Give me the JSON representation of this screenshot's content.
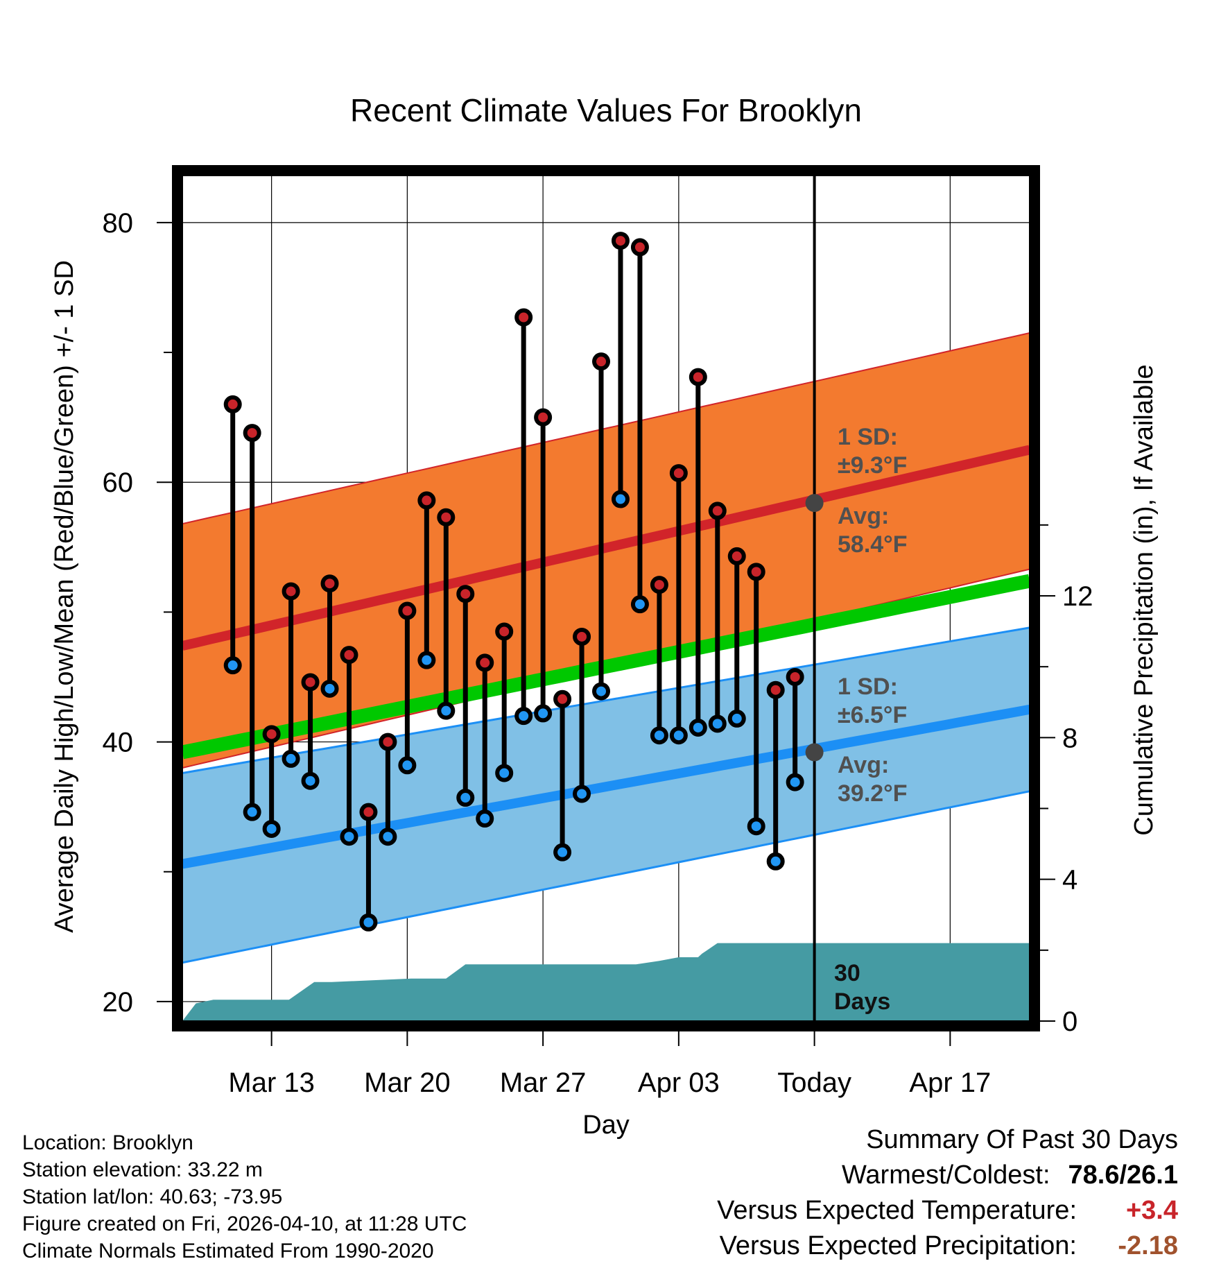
{
  "chart_data": {
    "type": "line",
    "title": "Recent Climate Values For Brooklyn",
    "xlabel": "Day",
    "ylabel": "Average Daily High/Low/Mean (Red/Blue/Green) +/- 1 SD",
    "y2label": "Cumulative Precipitation (in), If Available",
    "ylim": [
      18.5,
      84
    ],
    "y_ticks": [
      "20",
      "40",
      "60",
      "80"
    ],
    "y2lim": [
      0,
      24
    ],
    "y2_ticks": [
      "0",
      "4",
      "8",
      "12"
    ],
    "x_range_days": [
      -32.6,
      11.1
    ],
    "x_ticks": [
      {
        "label": "Mar 13",
        "day": -28
      },
      {
        "label": "Mar 20",
        "day": -21
      },
      {
        "label": "Mar 27",
        "day": -14
      },
      {
        "label": "Apr 03",
        "day": -7
      },
      {
        "label": "Today",
        "day": 0
      },
      {
        "label": "Apr 17",
        "day": 7
      }
    ],
    "days": [
      -30,
      -29,
      -28,
      -27,
      -26,
      -25,
      -24,
      -23,
      -22,
      -21,
      -20,
      -19,
      -18,
      -17,
      -16,
      -15,
      -14,
      -13,
      -12,
      -11,
      -10,
      -9,
      -8,
      -7,
      -6,
      -5,
      -4,
      -3,
      -2,
      -1
    ],
    "highs": [
      66.0,
      63.8,
      40.6,
      51.6,
      44.6,
      52.2,
      46.7,
      34.6,
      40.0,
      50.1,
      58.6,
      57.3,
      51.4,
      46.1,
      48.5,
      72.7,
      65.0,
      43.3,
      48.1,
      69.3,
      78.6,
      78.1,
      52.1,
      60.7,
      68.1,
      57.8,
      54.3,
      53.1,
      44.0,
      45.0
    ],
    "lows": [
      45.9,
      34.6,
      33.3,
      38.7,
      37.0,
      44.1,
      32.7,
      26.1,
      32.7,
      38.2,
      46.3,
      42.4,
      35.7,
      34.1,
      37.6,
      42.0,
      42.2,
      31.5,
      36.0,
      43.9,
      58.7,
      50.6,
      40.5,
      40.5,
      41.1,
      41.4,
      41.8,
      33.5,
      30.8,
      36.9
    ],
    "normal_high": {
      "start": 47.4,
      "today": 58.4,
      "end": 62.5,
      "sd_upper_start": 56.8,
      "sd_upper_end": 71.5,
      "sd_lower_start": 38.0,
      "sd_lower_end": 53.3
    },
    "normal_low": {
      "start": 30.6,
      "today": 39.2,
      "end": 42.5,
      "sd_upper_start": 37.6,
      "sd_upper_end": 48.8,
      "sd_lower_start": 23.0,
      "sd_lower_end": 36.2
    },
    "normal_mean": {
      "start": 39.2,
      "end": 52.4
    },
    "precipitation_cumulative": {
      "days": [
        -32.6,
        -31.9,
        -31.0,
        -29.8,
        -27.1,
        -25.8,
        -24.9,
        -20.8,
        -19.0,
        -18.0,
        -17.5,
        -13.0,
        -9.2,
        -8.0,
        -7.0,
        -6.0,
        -5.8,
        -5.0,
        -4.7,
        11.1
      ],
      "values": [
        0.0,
        0.5,
        0.6,
        0.6,
        0.6,
        1.1,
        1.1,
        1.2,
        1.2,
        1.6,
        1.6,
        1.6,
        1.6,
        1.7,
        1.8,
        1.8,
        1.9,
        2.2,
        2.2,
        2.2
      ]
    },
    "annotations": {
      "high_sd_label": "1 SD:",
      "high_sd_value": "±9.3°F",
      "high_avg_label": "Avg:",
      "high_avg_value": "58.4°F",
      "low_sd_label": "1 SD:",
      "low_sd_value": "±6.5°F",
      "low_avg_label": "Avg:",
      "low_avg_value": "39.2°F",
      "period_number": "30",
      "period_unit": "Days"
    },
    "colors": {
      "high_band": "#f37a2f",
      "high_line": "#d1242a",
      "low_band": "#80c0e6",
      "low_line": "#1c8ff5",
      "mean_line": "#00c800",
      "precip": "#459ba3",
      "high_dot": "#c8242a",
      "low_dot": "#2196f3",
      "today_marker": "#444444"
    }
  },
  "info": {
    "location": "Location: Brooklyn",
    "elevation": "Station elevation: 33.22 m",
    "latlon": "Station lat/lon: 40.63; -73.95",
    "created": "Figure created on Fri, 2026-04-10, at 11:28 UTC",
    "normals": "Climate Normals Estimated From 1990-2020"
  },
  "summary": {
    "title": "Summary Of Past 30 Days",
    "warmest_label": "Warmest/Coldest:",
    "warmest_value": "78.6/26.1",
    "temp_label": "Versus Expected Temperature:",
    "temp_value": "+3.4",
    "temp_color": "#c8242a",
    "precip_label": "Versus Expected Precipitation:",
    "precip_value": "-2.18",
    "precip_color": "#a0522d"
  }
}
